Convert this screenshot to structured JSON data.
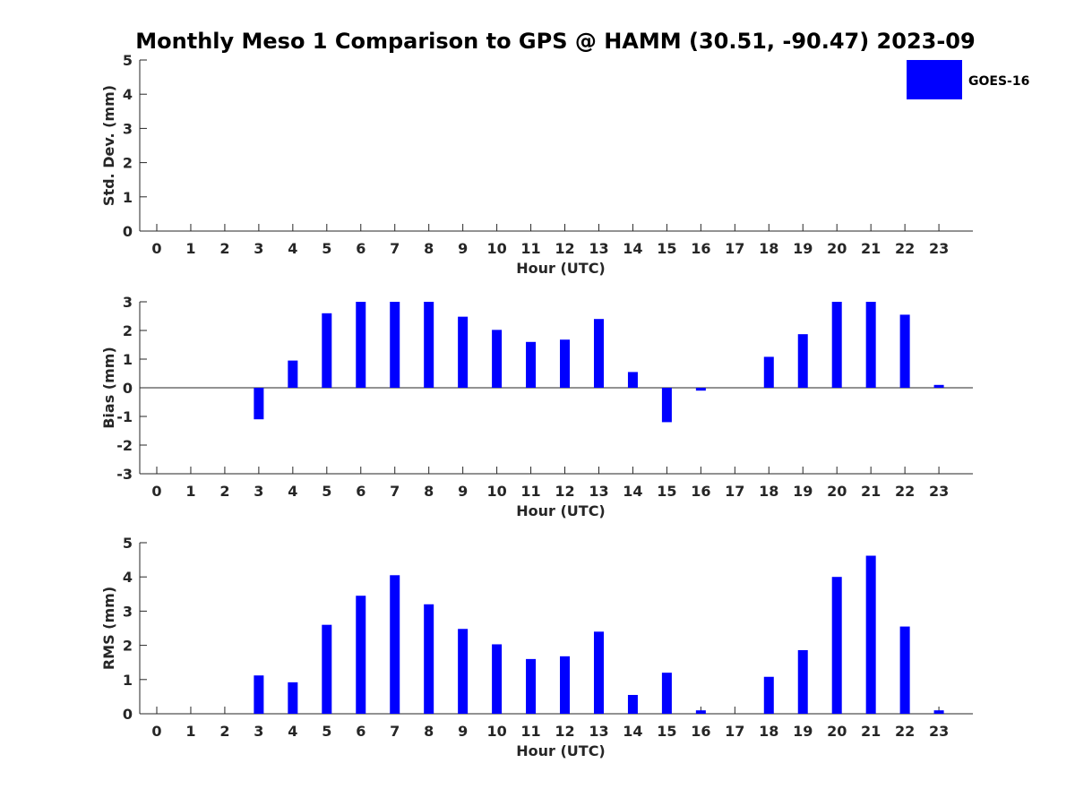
{
  "title": "Monthly Meso 1 Comparison to GPS @ HAMM (30.51, -90.47) 2023-09",
  "legend": {
    "label": "GOES-16",
    "color": "#0000ff",
    "position": "top-right"
  },
  "colors": {
    "bar": "#0000ff",
    "axis": "#262626"
  },
  "chart_data": [
    {
      "type": "bar",
      "title": "Monthly Meso 1 Comparison to GPS @ HAMM (30.51, -90.47) 2023-09",
      "xlabel": "Hour (UTC)",
      "ylabel": "Std. Dev. (mm)",
      "ylim": [
        0,
        5
      ],
      "yticks": [
        0,
        1,
        2,
        3,
        4,
        5
      ],
      "categories": [
        "0",
        "1",
        "2",
        "3",
        "4",
        "5",
        "6",
        "7",
        "8",
        "9",
        "10",
        "11",
        "12",
        "13",
        "14",
        "15",
        "16",
        "17",
        "18",
        "19",
        "20",
        "21",
        "22",
        "23"
      ],
      "series": [
        {
          "name": "GOES-16",
          "values": [
            null,
            null,
            null,
            null,
            null,
            null,
            null,
            null,
            null,
            null,
            null,
            null,
            null,
            null,
            null,
            null,
            null,
            null,
            null,
            null,
            null,
            null,
            null,
            null
          ]
        }
      ],
      "grid": false,
      "legend": "top-right"
    },
    {
      "type": "bar",
      "xlabel": "Hour (UTC)",
      "ylabel": "Bias (mm)",
      "ylim": [
        -3,
        3
      ],
      "yticks": [
        -3,
        -2,
        -1,
        0,
        1,
        2,
        3
      ],
      "categories": [
        "0",
        "1",
        "2",
        "3",
        "4",
        "5",
        "6",
        "7",
        "8",
        "9",
        "10",
        "11",
        "12",
        "13",
        "14",
        "15",
        "16",
        "17",
        "18",
        "19",
        "20",
        "21",
        "22",
        "23"
      ],
      "series": [
        {
          "name": "GOES-16",
          "values": [
            null,
            null,
            null,
            -1.1,
            0.95,
            2.6,
            3.0,
            3.0,
            3.0,
            2.48,
            2.02,
            1.6,
            1.68,
            2.4,
            0.55,
            -1.2,
            -0.1,
            null,
            1.08,
            1.87,
            3.0,
            3.0,
            2.55,
            0.1
          ]
        }
      ],
      "grid": false
    },
    {
      "type": "bar",
      "xlabel": "Hour (UTC)",
      "ylabel": "RMS (mm)",
      "ylim": [
        0,
        5
      ],
      "yticks": [
        0,
        1,
        2,
        3,
        4,
        5
      ],
      "categories": [
        "0",
        "1",
        "2",
        "3",
        "4",
        "5",
        "6",
        "7",
        "8",
        "9",
        "10",
        "11",
        "12",
        "13",
        "14",
        "15",
        "16",
        "17",
        "18",
        "19",
        "20",
        "21",
        "22",
        "23"
      ],
      "series": [
        {
          "name": "GOES-16",
          "values": [
            null,
            null,
            null,
            1.12,
            0.92,
            2.6,
            3.45,
            4.05,
            3.2,
            2.48,
            2.03,
            1.6,
            1.68,
            2.4,
            0.55,
            1.2,
            0.1,
            null,
            1.08,
            1.86,
            4.0,
            4.62,
            2.55,
            0.1
          ]
        }
      ],
      "grid": false
    }
  ]
}
